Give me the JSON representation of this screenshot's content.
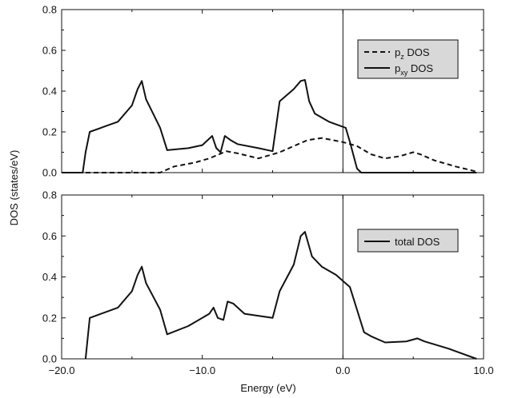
{
  "chart_data": {
    "type": "line",
    "xlabel": "Energy (eV)",
    "ylabel": "DOS (states/eV)",
    "xlim": [
      -20,
      10
    ],
    "x_ticks": [
      "−20.0",
      "−10.0",
      "0.0",
      "10.0"
    ],
    "x_tick_values": [
      -20,
      -10,
      0,
      10
    ],
    "fermi_line_x": 0,
    "panels": [
      {
        "ylim": [
          0,
          0.8
        ],
        "y_ticks": [
          "0.0",
          "0.2",
          "0.4",
          "0.6",
          "0.8"
        ],
        "y_tick_values": [
          0,
          0.2,
          0.4,
          0.6,
          0.8
        ],
        "legend": {
          "placement": "top-right",
          "background": "#d8d8d8",
          "entries": [
            {
              "base": "p",
              "sub": "z",
              "rest": " DOS",
              "style": "dashed"
            },
            {
              "base": "p",
              "sub": "xy",
              "rest": " DOS",
              "style": "solid"
            }
          ]
        },
        "series": [
          {
            "name": "pz DOS",
            "style": "dashed",
            "x": [
              -20.0,
              -15.0,
              -13.0,
              -12.0,
              -10.5,
              -9.5,
              -8.8,
              -8.3,
              -7.5,
              -6.0,
              -4.5,
              -3.5,
              -2.5,
              -1.5,
              0.0,
              1.0,
              2.0,
              3.0,
              4.0,
              5.0,
              5.5,
              6.5,
              8.0,
              9.5
            ],
            "values": [
              0.0,
              0.0,
              0.0,
              0.03,
              0.05,
              0.07,
              0.09,
              0.105,
              0.095,
              0.07,
              0.1,
              0.13,
              0.16,
              0.17,
              0.15,
              0.13,
              0.09,
              0.07,
              0.08,
              0.1,
              0.09,
              0.06,
              0.03,
              0.005
            ]
          },
          {
            "name": "pxy DOS",
            "style": "solid",
            "x": [
              -20.0,
              -18.5,
              -18.3,
              -18.0,
              -16.0,
              -15.0,
              -14.6,
              -14.3,
              -14.0,
              -13.0,
              -12.5,
              -11.0,
              -10.0,
              -9.3,
              -9.0,
              -8.7,
              -8.4,
              -8.0,
              -7.5,
              -6.0,
              -5.0,
              -4.5,
              -3.5,
              -3.0,
              -2.7,
              -2.4,
              -2.0,
              -1.0,
              0.2,
              0.5,
              1.0,
              1.3,
              3.0,
              6.0,
              9.5
            ],
            "values": [
              0.0,
              0.0,
              0.1,
              0.2,
              0.25,
              0.33,
              0.41,
              0.45,
              0.36,
              0.22,
              0.11,
              0.12,
              0.135,
              0.18,
              0.12,
              0.1,
              0.18,
              0.16,
              0.14,
              0.12,
              0.105,
              0.35,
              0.41,
              0.45,
              0.455,
              0.35,
              0.29,
              0.25,
              0.22,
              0.15,
              0.02,
              0.0,
              0.0,
              0.0,
              0.0
            ]
          }
        ]
      },
      {
        "ylim": [
          0,
          0.8
        ],
        "y_ticks": [
          "0.0",
          "0.2",
          "0.4",
          "0.6",
          "0.8"
        ],
        "y_tick_values": [
          0,
          0.2,
          0.4,
          0.6,
          0.8
        ],
        "legend": {
          "placement": "top-right",
          "background": "#d8d8d8",
          "entries": [
            {
              "base": "total DOS",
              "sub": "",
              "rest": "",
              "style": "solid"
            }
          ]
        },
        "series": [
          {
            "name": "total DOS",
            "style": "solid",
            "x": [
              -18.3,
              -18.0,
              -16.0,
              -15.0,
              -14.6,
              -14.3,
              -14.0,
              -13.0,
              -12.5,
              -11.0,
              -9.5,
              -9.2,
              -8.9,
              -8.5,
              -8.2,
              -7.8,
              -7.0,
              -5.0,
              -4.5,
              -3.5,
              -3.0,
              -2.7,
              -2.2,
              -1.5,
              -0.5,
              0.5,
              1.0,
              1.5,
              2.0,
              3.0,
              4.5,
              5.3,
              5.8,
              7.5,
              9.5
            ],
            "values": [
              0.0,
              0.2,
              0.25,
              0.33,
              0.41,
              0.45,
              0.37,
              0.24,
              0.12,
              0.16,
              0.22,
              0.25,
              0.2,
              0.19,
              0.28,
              0.27,
              0.22,
              0.2,
              0.33,
              0.46,
              0.6,
              0.62,
              0.5,
              0.45,
              0.41,
              0.35,
              0.24,
              0.13,
              0.11,
              0.08,
              0.085,
              0.1,
              0.085,
              0.05,
              0.0
            ]
          }
        ]
      }
    ]
  }
}
